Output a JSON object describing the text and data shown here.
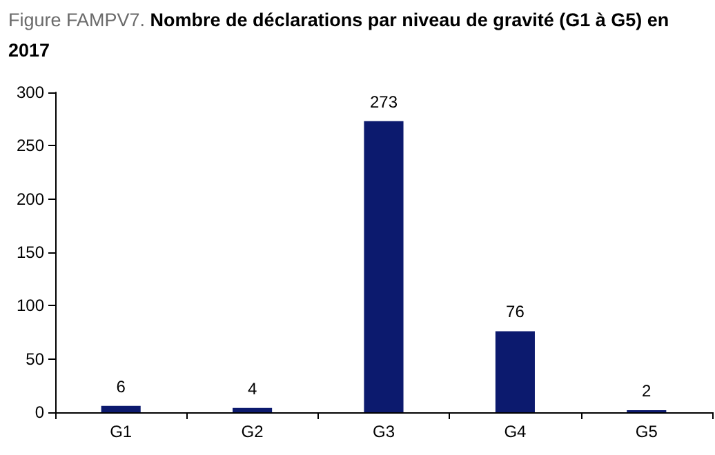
{
  "chart_data": {
    "type": "bar",
    "title": "Figure FAMPV7. Nombre de déclarations par niveau de gravité (G1 à G5) en 2017",
    "categories": [
      "G1",
      "G2",
      "G3",
      "G4",
      "G5"
    ],
    "values": [
      6,
      4,
      273,
      76,
      2
    ],
    "color": "#0c1a6e",
    "ylim": [
      0,
      300
    ],
    "yticks": [
      0,
      50,
      100,
      150,
      200,
      250,
      300
    ],
    "grid": false,
    "data_labels": true
  }
}
